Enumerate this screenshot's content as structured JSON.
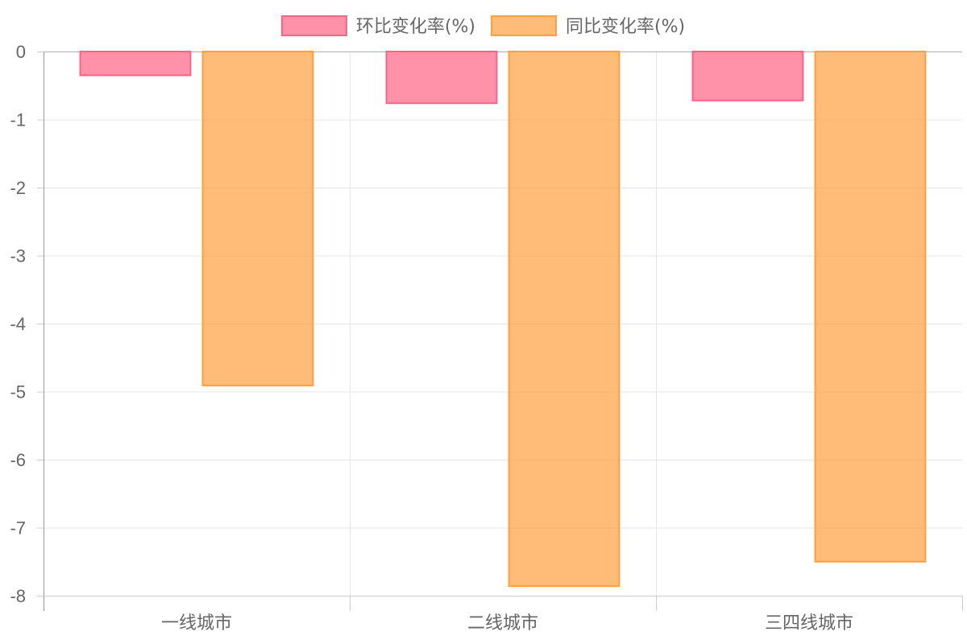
{
  "chart_data": {
    "type": "bar",
    "categories": [
      "一线城市",
      "二线城市",
      "三四线城市"
    ],
    "series": [
      {
        "name": "环比变化率(%)",
        "values": [
          -0.35,
          -0.76,
          -0.72
        ],
        "fill": "#ff6384",
        "border": "#ff6384"
      },
      {
        "name": "同比变化率(%)",
        "values": [
          -4.91,
          -7.86,
          -7.5
        ],
        "fill": "#ff9f40",
        "border": "#ff9f40"
      }
    ],
    "title": "",
    "xlabel": "",
    "ylabel": "",
    "ylim": [
      -8,
      0
    ],
    "yticks": [
      0,
      -1,
      -2,
      -3,
      -4,
      -5,
      -6,
      -7,
      -8
    ],
    "grid": true,
    "legend_position": "top"
  }
}
